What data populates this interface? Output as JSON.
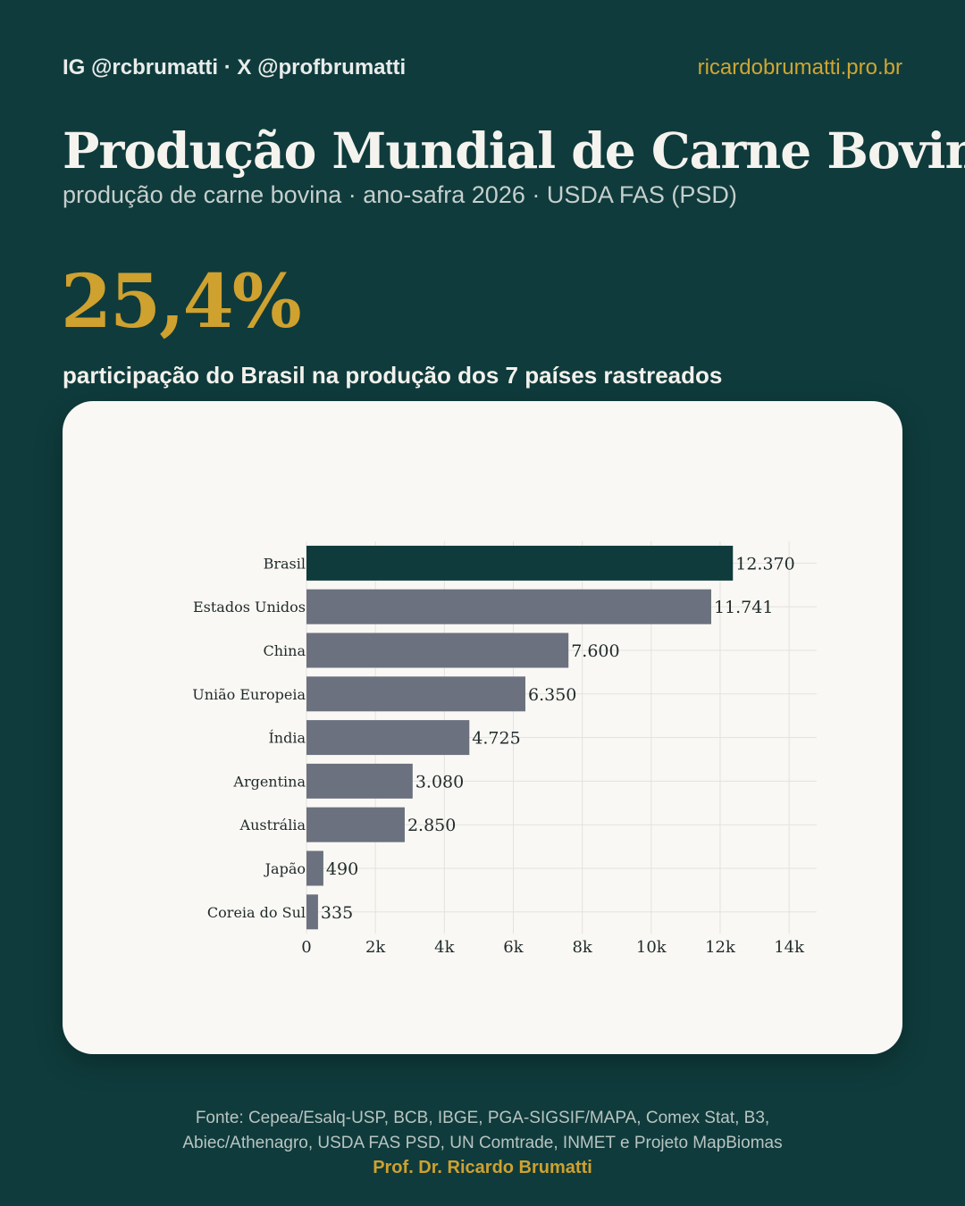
{
  "header": {
    "social_handles": "IG @rcbrumatti · X @profbrumatti",
    "website": "ricardobrumatti.pro.br"
  },
  "title": "Produção Mundial de Carne Bovina",
  "subtitle": "produção de carne bovina · ano-safra 2026 · USDA FAS (PSD)",
  "highlight": {
    "value": "25,4%",
    "caption": "participação do Brasil na produção dos 7 países rastreados"
  },
  "colors": {
    "background": "#0f3b3c",
    "highlight_bar": "#0f3b3c",
    "other_bars": "#6b717e",
    "accent": "#cfa12f",
    "card": "#faf8f4"
  },
  "chart_data": {
    "type": "bar",
    "orientation": "horizontal",
    "categories": [
      "Brasil",
      "Estados Unidos",
      "China",
      "União Europeia",
      "Índia",
      "Argentina",
      "Austrália",
      "Japão",
      "Coreia do Sul"
    ],
    "values": [
      12370,
      11741,
      7600,
      6350,
      4725,
      3080,
      2850,
      490,
      335
    ],
    "value_labels": [
      "12.370",
      "11.741",
      "7.600",
      "6.350",
      "4.725",
      "3.080",
      "2.850",
      "490",
      "335"
    ],
    "highlight_category": "Brasil",
    "xlim": [
      0,
      14800
    ],
    "xticks": [
      0,
      2000,
      4000,
      6000,
      8000,
      10000,
      12000,
      14000
    ],
    "xtick_labels": [
      "0",
      "2k",
      "4k",
      "6k",
      "8k",
      "10k",
      "12k",
      "14k"
    ],
    "grid": true,
    "legend": "none",
    "xlabel": "",
    "ylabel": ""
  },
  "footer": {
    "source_line1": "Fonte: Cepea/Esalq-USP, BCB, IBGE, PGA-SIGSIF/MAPA, Comex Stat, B3,",
    "source_line2": "Abiec/Athenagro, USDA FAS PSD, UN Comtrade, INMET e Projeto MapBiomas",
    "author": "Prof. Dr. Ricardo Brumatti"
  }
}
